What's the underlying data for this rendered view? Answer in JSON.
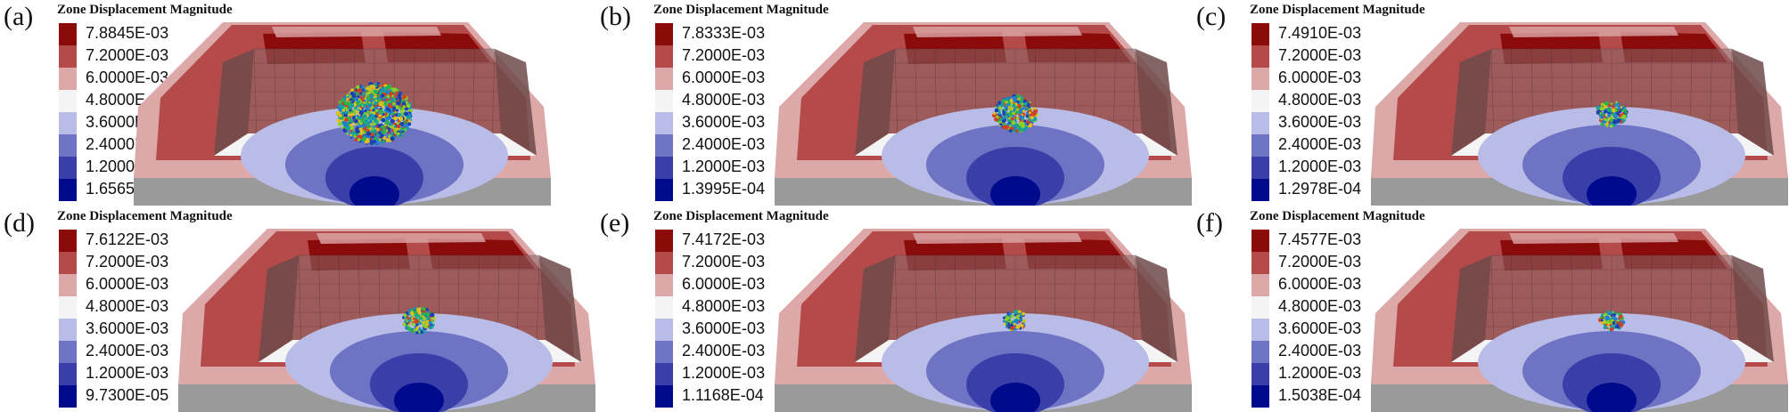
{
  "legend_title": "Zone Displacement Magnitude",
  "colors": {
    "dark_red": "#8b0a0a",
    "red": "#b44a4a",
    "light_red": "#dca8a8",
    "white": "#f4f4f4",
    "light_blue": "#b8bce6",
    "mid_blue": "#6f73c4",
    "blue": "#3a3ea8",
    "dark_blue": "#000a8c",
    "gray": "#9a9a9a"
  },
  "panels": [
    {
      "label": "(a)",
      "legend": [
        "7.8845E-03",
        "7.2000E-03",
        "6.0000E-03",
        "4.8000E-03",
        "3.6000E-03",
        "2.4000E-03",
        "1.2000E-03",
        "1.6565E-04"
      ]
    },
    {
      "label": "(b)",
      "legend": [
        "7.8333E-03",
        "7.2000E-03",
        "6.0000E-03",
        "4.8000E-03",
        "3.6000E-03",
        "2.4000E-03",
        "1.2000E-03",
        "1.3995E-04"
      ]
    },
    {
      "label": "(c)",
      "legend": [
        "7.4910E-03",
        "7.2000E-03",
        "6.0000E-03",
        "4.8000E-03",
        "3.6000E-03",
        "2.4000E-03",
        "1.2000E-03",
        "1.2978E-04"
      ]
    },
    {
      "label": "(d)",
      "legend": [
        "7.6122E-03",
        "7.2000E-03",
        "6.0000E-03",
        "4.8000E-03",
        "3.6000E-03",
        "2.4000E-03",
        "1.2000E-03",
        "9.7300E-05"
      ]
    },
    {
      "label": "(e)",
      "legend": [
        "7.4172E-03",
        "7.2000E-03",
        "6.0000E-03",
        "4.8000E-03",
        "3.6000E-03",
        "2.4000E-03",
        "1.2000E-03",
        "1.1168E-04"
      ]
    },
    {
      "label": "(f)",
      "legend": [
        "7.4577E-03",
        "7.2000E-03",
        "6.0000E-03",
        "4.8000E-03",
        "3.6000E-03",
        "2.4000E-03",
        "1.2000E-03",
        "1.5038E-04"
      ]
    }
  ]
}
